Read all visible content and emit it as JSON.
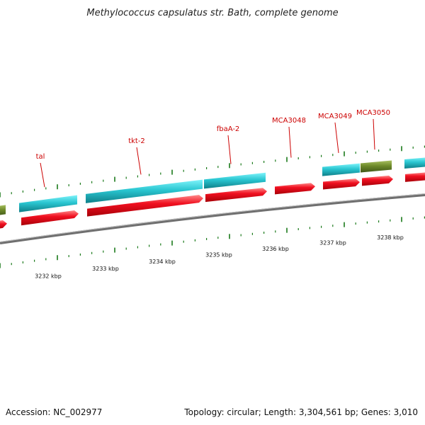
{
  "title": "Methylococcus capsulatus str. Bath, complete genome",
  "footer": {
    "accession": "Accession: NC_002977",
    "stats": "Topology: circular; Length: 3,304,561 bp; Genes: 3,010"
  },
  "colors": {
    "cds_forward": "#e8101a",
    "gene_cyan": "#22c0cc",
    "gene_olive": "#6e8a2a",
    "backbone": "#7a7a7a",
    "tick": "#1a7a1a",
    "label": "#cc0000"
  },
  "scale": {
    "unit": "kbp",
    "ticks": [
      "3232 kbp",
      "3233 kbp",
      "3234 kbp",
      "3235 kbp",
      "3236 kbp",
      "3237 kbp",
      "3238 kbp"
    ]
  },
  "gene_labels": [
    "tal",
    "tkt-2",
    "fbaA-2",
    "MCA3048",
    "MCA3049",
    "MCA3050"
  ],
  "tracks": [
    "cds",
    "gene"
  ]
}
